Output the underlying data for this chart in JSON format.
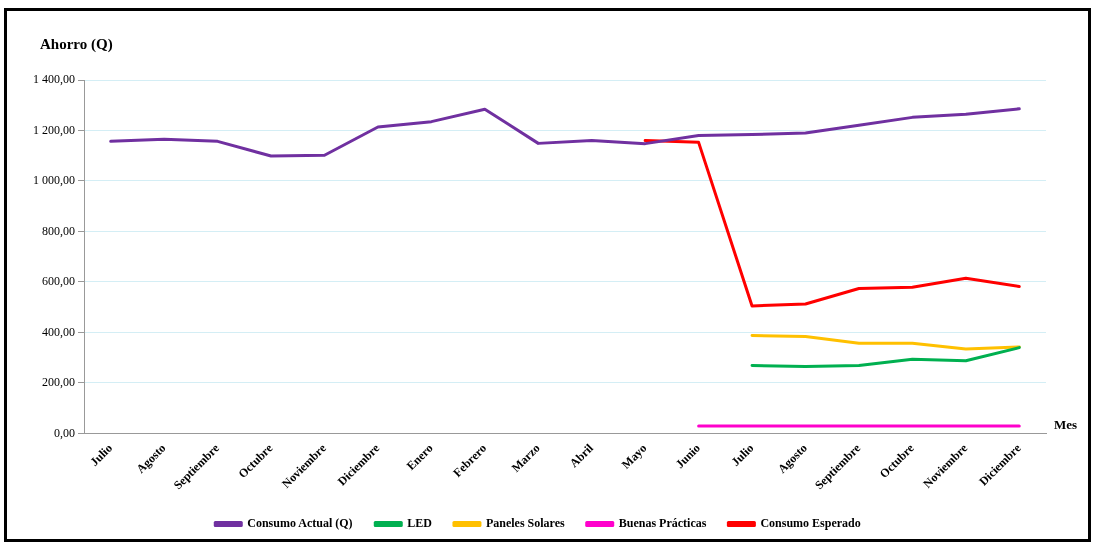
{
  "chart_data": {
    "type": "line",
    "ylabel": "Ahorro (Q)",
    "xlabel": "Mes",
    "categories": [
      "Julio",
      "Agosto",
      "Septiembre",
      "Octubre",
      "Noviembre",
      "Diciembre",
      "Enero",
      "Febrero",
      "Marzo",
      "Abril",
      "Mayo",
      "Junio",
      "Julio",
      "Agosto",
      "Septiembre",
      "Octubre",
      "Noviembre",
      "Diciembre"
    ],
    "series": [
      {
        "name": "Consumo Actual (Q)",
        "color": "#7030a0",
        "values": [
          1157,
          1165,
          1157,
          1099,
          1102,
          1214,
          1235,
          1284,
          1149,
          1160,
          1148,
          1180,
          1184,
          1190,
          1221,
          1252,
          1264,
          1286
        ]
      },
      {
        "name": "LED",
        "color": "#00b050",
        "values": [
          null,
          null,
          null,
          null,
          null,
          null,
          null,
          null,
          null,
          null,
          null,
          null,
          269,
          265,
          269,
          294,
          288,
          340
        ]
      },
      {
        "name": "Paneles Solares",
        "color": "#ffc000",
        "values": [
          null,
          null,
          null,
          null,
          null,
          null,
          null,
          null,
          null,
          null,
          null,
          null,
          388,
          384,
          357,
          357,
          335,
          343
        ]
      },
      {
        "name": "Buenas Prácticas",
        "color": "#ff00cc",
        "values": [
          null,
          null,
          null,
          null,
          null,
          null,
          null,
          null,
          null,
          null,
          null,
          30,
          30,
          30,
          30,
          30,
          30,
          30
        ]
      },
      {
        "name": "Consumo Esperado",
        "color": "#ff0000",
        "values": [
          null,
          null,
          null,
          null,
          null,
          null,
          null,
          null,
          null,
          null,
          1160,
          1153,
          505,
          513,
          574,
          579,
          615,
          582
        ]
      }
    ],
    "ylim": [
      0,
      1400
    ],
    "yticks": [
      {
        "value": 0,
        "label": "0,00"
      },
      {
        "value": 200,
        "label": "200,00"
      },
      {
        "value": 400,
        "label": "400,00"
      },
      {
        "value": 600,
        "label": "600,00"
      },
      {
        "value": 800,
        "label": "800,00"
      },
      {
        "value": 1000,
        "label": "1 000,00"
      },
      {
        "value": 1200,
        "label": "1 200,00"
      },
      {
        "value": 1400,
        "label": "1 400,00"
      }
    ],
    "grid": "y",
    "legend": "bottom",
    "marker": "none",
    "line_style": "solid"
  }
}
